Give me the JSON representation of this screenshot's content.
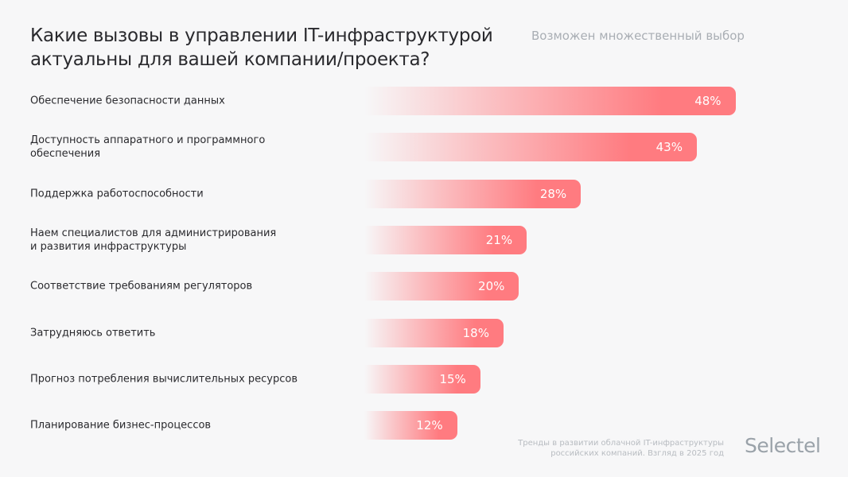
{
  "chart_data": {
    "type": "bar",
    "orientation": "horizontal",
    "title": "Какие вызовы в управлении IT-инфраструктурой актуальны для вашей компании/проекта?",
    "subtitle": "Возможен множественный выбор",
    "categories": [
      "Обеспечение безопасности данных",
      "Доступность аппаратного и программного обеспечения",
      "Поддержка работоспособности",
      "Наем специалистов для администрирования и развития инфраструктуры",
      "Соответствие требованиям регуляторов",
      "Затрудняюсь ответить",
      "Прогноз потребления вычислительных ресурсов",
      "Планирование бизнес-процессов"
    ],
    "category_lines": [
      [
        "Обеспечение безопасности данных"
      ],
      [
        "Доступность аппаратного и программного",
        "обеспечения"
      ],
      [
        "Поддержка работоспособности"
      ],
      [
        "Наем специалистов для администрирования",
        "и развития инфраструктуры"
      ],
      [
        "Соответствие требованиям регуляторов"
      ],
      [
        "Затрудняюсь ответить"
      ],
      [
        "Прогноз потребления вычислительных ресурсов"
      ],
      [
        "Планирование бизнес-процессов"
      ]
    ],
    "values": [
      48,
      43,
      28,
      21,
      20,
      18,
      15,
      12
    ],
    "value_labels": [
      "48%",
      "43%",
      "28%",
      "21%",
      "20%",
      "18%",
      "15%",
      "12%"
    ],
    "unit": "%",
    "grid": false,
    "bar_color": "#ff7b80"
  },
  "footer": {
    "source_line1": "Тренды в развитии облачной IT-инфраструктуры",
    "source_line2": "российских компаний. Взгляд в 2025 год",
    "logo": "Selectel"
  }
}
